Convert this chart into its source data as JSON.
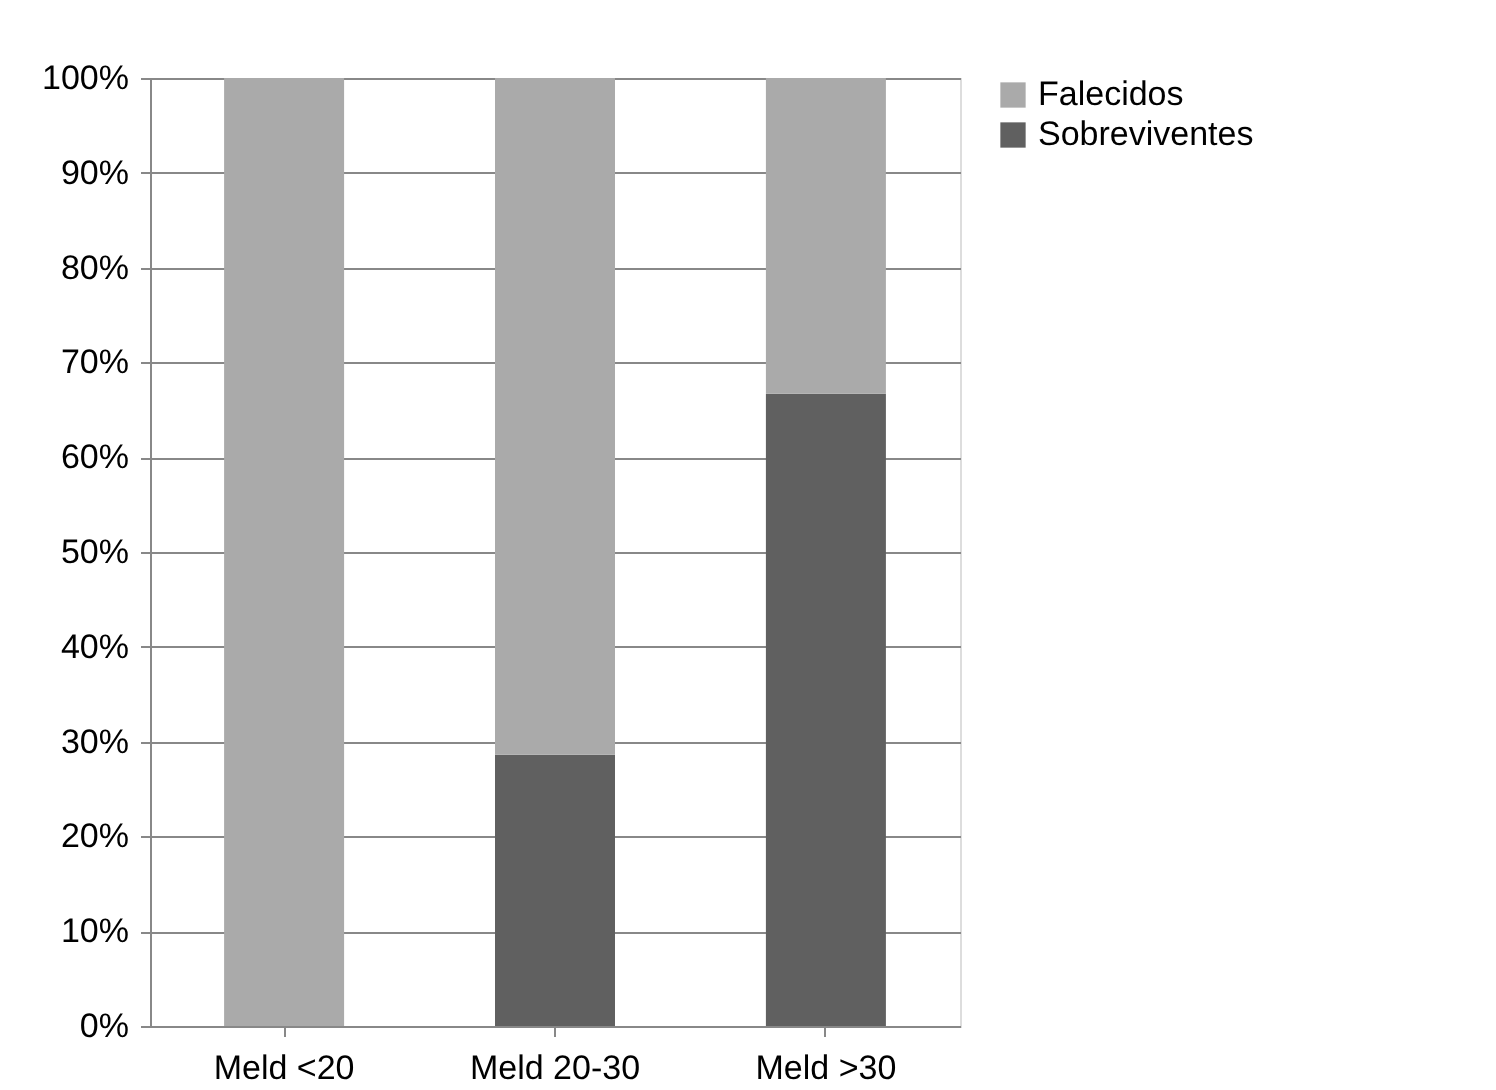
{
  "chart_data": {
    "type": "bar",
    "stacked": true,
    "categories": [
      "Meld <20",
      "Meld 20-30",
      "Meld >30"
    ],
    "series": [
      {
        "name": "Sobreviventes",
        "color": "#606060",
        "values": [
          0,
          28.6,
          66.7
        ]
      },
      {
        "name": "Falecidos",
        "color": "#aaaaaa",
        "values": [
          100,
          71.4,
          33.3
        ]
      }
    ],
    "ylim": [
      0,
      100
    ],
    "yticks": [
      {
        "value": 0,
        "label": "0%"
      },
      {
        "value": 10,
        "label": "10%"
      },
      {
        "value": 20,
        "label": "20%"
      },
      {
        "value": 30,
        "label": "30%"
      },
      {
        "value": 40,
        "label": "40%"
      },
      {
        "value": 50,
        "label": "50%"
      },
      {
        "value": 60,
        "label": "60%"
      },
      {
        "value": 70,
        "label": "70%"
      },
      {
        "value": 80,
        "label": "80%"
      },
      {
        "value": 90,
        "label": "90%"
      },
      {
        "value": 100,
        "label": "100%"
      }
    ],
    "grid": "y",
    "legend": "right"
  }
}
